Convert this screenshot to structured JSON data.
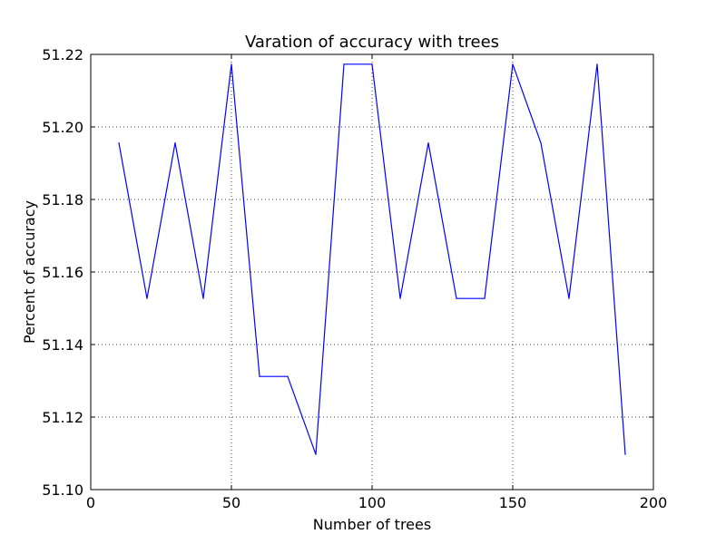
{
  "chart_data": {
    "type": "line",
    "title": "Varation of accuracy with trees",
    "xlabel": "Number of trees",
    "ylabel": "Percent of accuracy",
    "xlim": [
      0,
      200
    ],
    "ylim": [
      51.1,
      51.22
    ],
    "x_ticks": [
      "0",
      "50",
      "100",
      "150",
      "200"
    ],
    "y_ticks": [
      "51.10",
      "51.12",
      "51.14",
      "51.16",
      "51.18",
      "51.20",
      "51.22"
    ],
    "grid": true,
    "series": [
      {
        "x": [
          10,
          20,
          30,
          40,
          50,
          60,
          70,
          80,
          90,
          100,
          110,
          120,
          130,
          140,
          150,
          160,
          170,
          180,
          190
        ],
        "values": [
          51.1956,
          51.1527,
          51.1956,
          51.1527,
          51.2173,
          51.1312,
          51.1312,
          51.1097,
          51.2173,
          51.2173,
          51.1527,
          51.1956,
          51.1527,
          51.1527,
          51.2173,
          51.1956,
          51.1527,
          51.2173,
          51.1097
        ],
        "color": "#0000ff"
      }
    ]
  }
}
